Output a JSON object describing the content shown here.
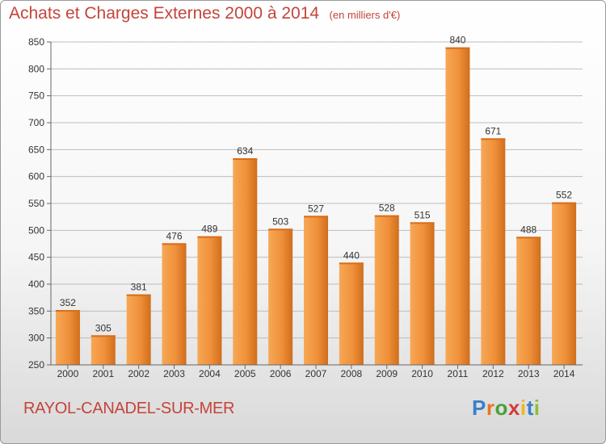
{
  "chart_data": {
    "type": "bar",
    "title": "Achats et Charges Externes 2000 à 2014",
    "subtitle": "(en milliers d'€)",
    "categories": [
      "2000",
      "2001",
      "2002",
      "2003",
      "2004",
      "2005",
      "2006",
      "2007",
      "2008",
      "2009",
      "2010",
      "2011",
      "2012",
      "2013",
      "2014"
    ],
    "values": [
      352,
      305,
      381,
      476,
      489,
      634,
      503,
      527,
      440,
      528,
      515,
      840,
      671,
      488,
      552
    ],
    "ylim": [
      250,
      850
    ],
    "yticks": [
      250,
      300,
      350,
      400,
      450,
      500,
      550,
      600,
      650,
      700,
      750,
      800,
      850
    ],
    "grid": true,
    "bar_color": "#f0903a"
  },
  "footer": {
    "place": "RAYOL-CANADEL-SUR-MER"
  },
  "logo": {
    "letters": [
      "P",
      "r",
      "o",
      "x",
      "i",
      "t",
      "i"
    ],
    "colors": [
      "#3a7fc8",
      "#e8741f",
      "#4a9f3a",
      "#d43b3b",
      "#f0b81e",
      "#3a7fc8",
      "#8bbf3a"
    ]
  }
}
